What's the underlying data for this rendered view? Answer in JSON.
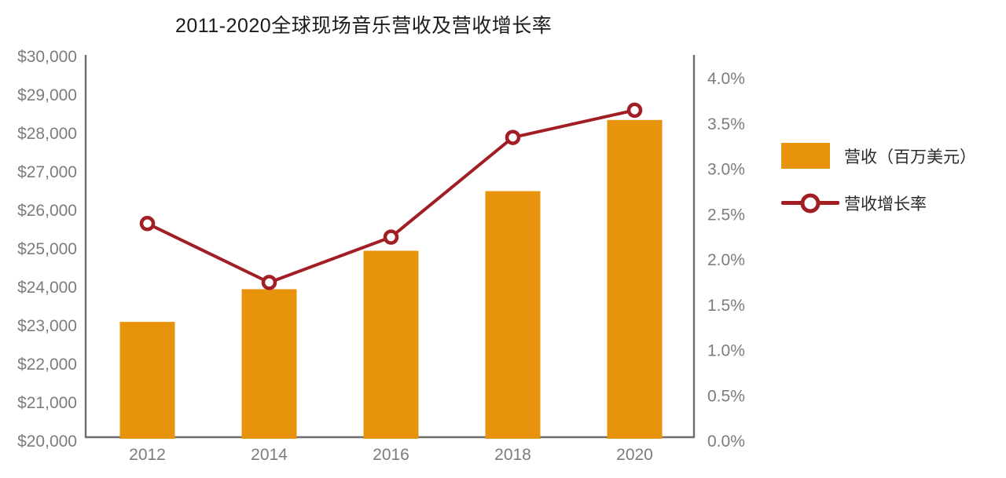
{
  "chart_data": {
    "type": "combo-bar-line",
    "title": "2011-2020全球现场音乐营收及营收增长率",
    "categories": [
      "2012",
      "2014",
      "2016",
      "2018",
      "2020"
    ],
    "series": [
      {
        "name": "营收（百万美元）",
        "type": "bar",
        "axis": "left",
        "values": [
          23100,
          23950,
          24950,
          26500,
          28350
        ]
      },
      {
        "name": "营收增长率",
        "type": "line",
        "axis": "right",
        "values": [
          2.4,
          1.75,
          2.25,
          3.35,
          3.65
        ]
      }
    ],
    "y1_axis": {
      "min": 20000,
      "max": 30000,
      "tick_step": 1000,
      "tick_labels": [
        "$20,000",
        "$21,000",
        "$22,000",
        "$23,000",
        "$24,000",
        "$25,000",
        "$26,000",
        "$27,000",
        "$28,000",
        "$29,000",
        "$30,000"
      ]
    },
    "y2_axis": {
      "min": 0.0,
      "max": 4.0,
      "tick_step": 0.5,
      "tick_labels": [
        "0.0%",
        "0.5%",
        "1.0%",
        "1.5%",
        "2.0%",
        "2.5%",
        "3.0%",
        "3.5%",
        "4.0%"
      ]
    },
    "grid": false,
    "legend_position": "right"
  },
  "colors": {
    "bar": "#E8930C",
    "line": "#A11E24",
    "marker_fill": "#FFFFFF",
    "axis_line": "#6E6E6E",
    "tick_label": "#7C7C7C",
    "title_text": "#1B1B1B",
    "legend_text": "#2A2A2A",
    "background": "#FFFFFF"
  }
}
